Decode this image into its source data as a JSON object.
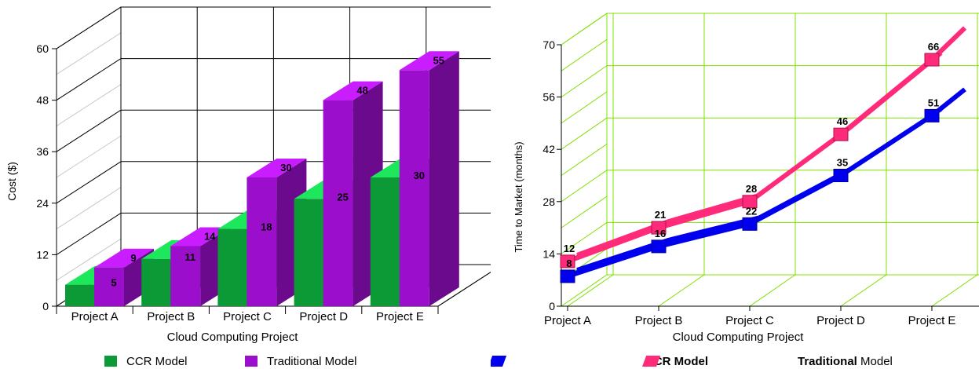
{
  "chart_data": [
    {
      "type": "bar",
      "categories": [
        "Project A",
        "Project B",
        "Project C",
        "Project D",
        "Project E"
      ],
      "series": [
        {
          "name": "CCR Model",
          "values": [
            5,
            11,
            18,
            25,
            30
          ],
          "color": "#0c9a36",
          "top_color": "#1de85c"
        },
        {
          "name": "Traditional Model",
          "values": [
            9,
            14,
            30,
            48,
            55
          ],
          "color": "#9a0ecc",
          "top_color": "#c91cff",
          "side_color": "#6b0a8c"
        }
      ],
      "data_labels": [
        [
          5,
          11,
          18,
          25,
          30
        ],
        [
          9,
          14,
          30,
          48,
          55
        ]
      ],
      "title": "",
      "xlabel": "Cloud Computing Project",
      "ylabel": "Cost  ($)",
      "ylim": [
        0,
        60
      ],
      "yticks": [
        "0",
        "12",
        "24",
        "36",
        "48",
        "60"
      ],
      "grid": true,
      "legend_position": "bottom"
    },
    {
      "type": "line",
      "categories": [
        "Project A",
        "Project B",
        "Project C",
        "Project D",
        "Project E"
      ],
      "series": [
        {
          "name": "CCR Model",
          "values": [
            8,
            16,
            22,
            35,
            51
          ],
          "color": "#0000ee"
        },
        {
          "name": "Traditional Model",
          "values": [
            12,
            21,
            28,
            46,
            66
          ],
          "color": "#ff2a7a"
        }
      ],
      "title": "",
      "xlabel": "Cloud Computing Project",
      "ylabel": "Time to Market (months)",
      "ylim": [
        0,
        70
      ],
      "yticks": [
        "0",
        "14",
        "28",
        "42",
        "56",
        "70"
      ],
      "grid": true,
      "grid_color": "#7fe000",
      "legend_position": "bottom"
    }
  ],
  "legend_left": [
    "CCR Model",
    "Traditional Model"
  ],
  "legend_right": [
    {
      "bold": "CCR Model",
      "rest": ""
    },
    {
      "bold": "Traditional",
      "rest": " Model"
    }
  ]
}
